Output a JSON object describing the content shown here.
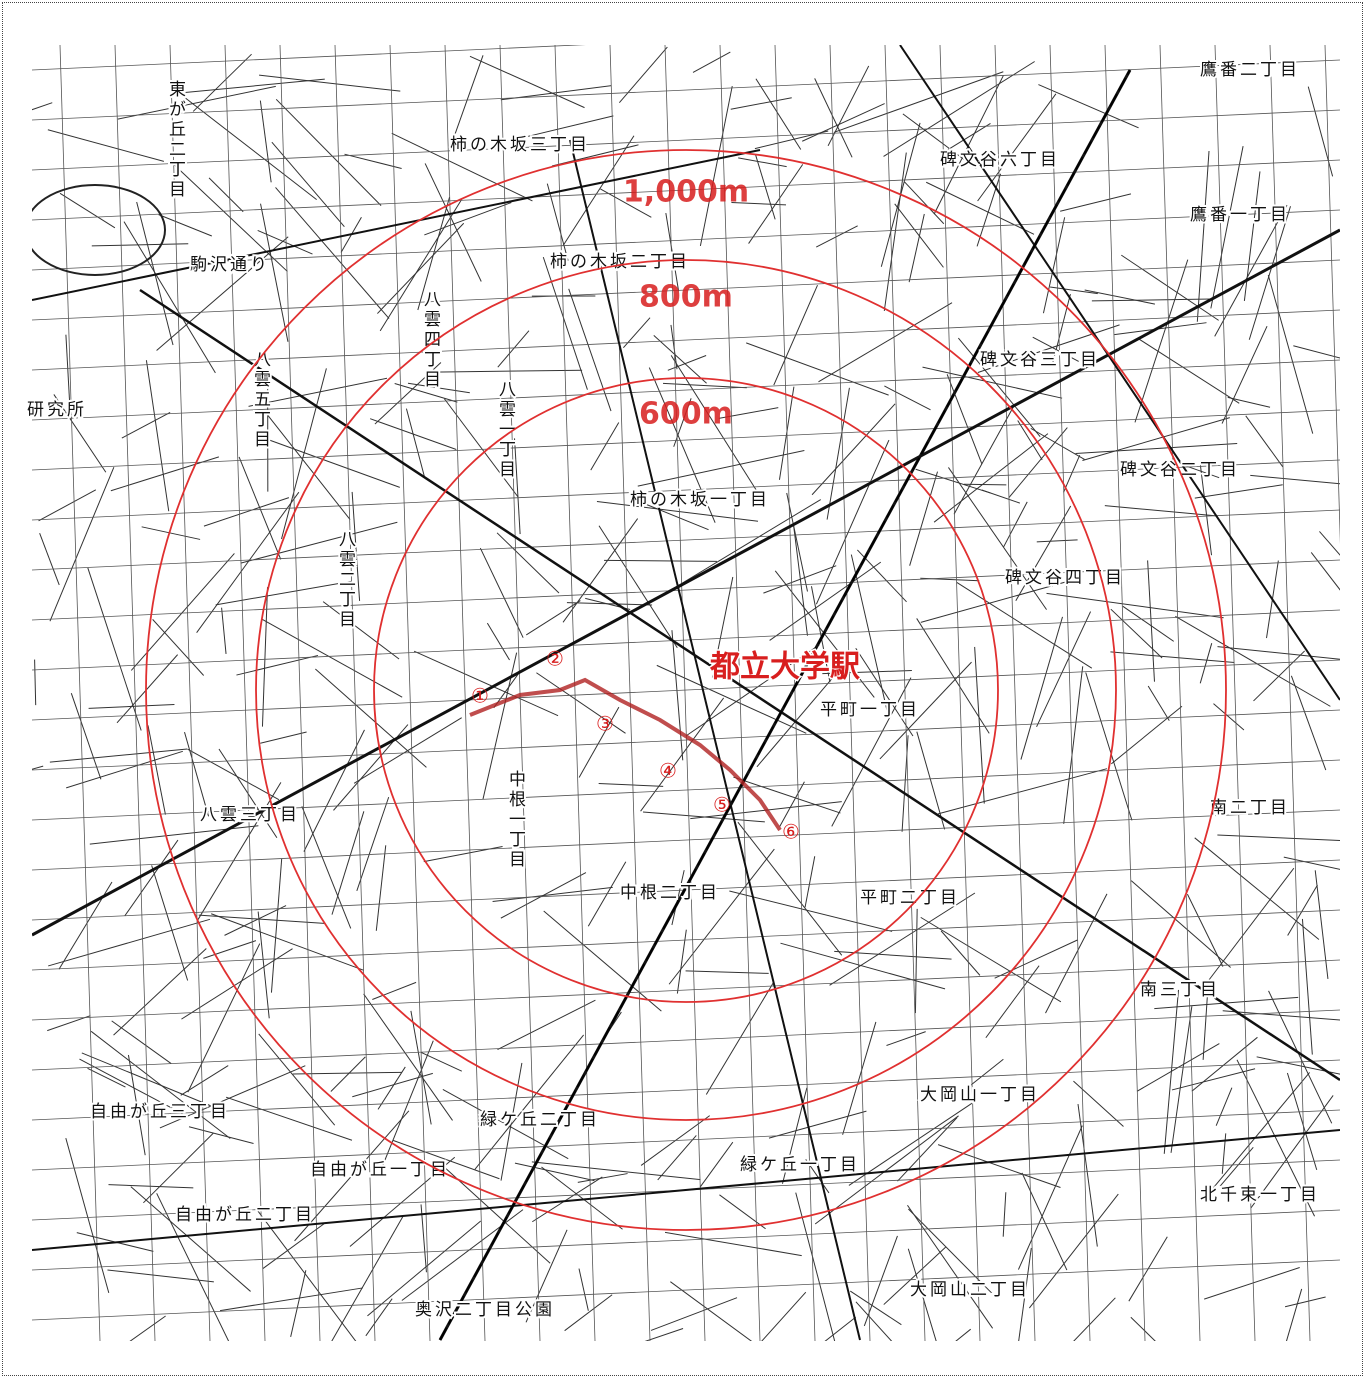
{
  "map": {
    "distance_labels": [
      "1,000m",
      "800m",
      "600m"
    ],
    "station": "都立大学駅",
    "route_markers": [
      "①",
      "②",
      "③",
      "④",
      "⑤",
      "⑥"
    ],
    "place_names": [
      "柿の木坂三丁目",
      "碑文谷六丁目",
      "鷹番二丁目",
      "鷹番一丁目",
      "東が丘二丁目",
      "駒沢通り",
      "柿の木坂二丁目",
      "八雲四丁目",
      "八雲五丁目",
      "碑文谷三丁目",
      "碑文谷二丁目",
      "八雲一丁目",
      "柿の木坂一丁目",
      "碑文谷四丁目",
      "八雲二丁目",
      "平町一丁目",
      "八雲三丁目",
      "中根一丁目",
      "中根二丁目",
      "平町二丁目",
      "南二丁目",
      "南三丁目",
      "緑ケ丘二丁目",
      "緑ケ丘一丁目",
      "大岡山一丁目",
      "自由が丘三丁目",
      "自由が丘一丁目",
      "自由が丘二丁目",
      "北千束一丁目",
      "大岡山二丁目",
      "奥沢二丁目公園",
      "研究所"
    ]
  }
}
